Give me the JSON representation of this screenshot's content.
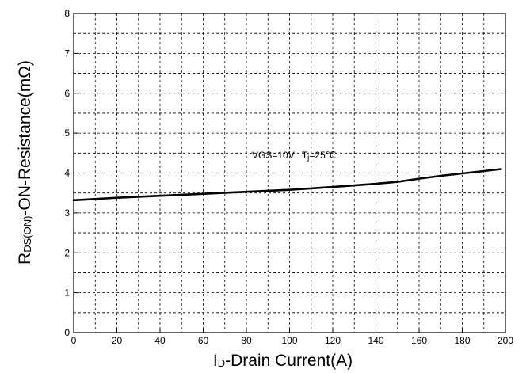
{
  "chart_data": {
    "type": "line",
    "xlabel": {
      "main": "I",
      "sub": "D",
      "rest": "-Drain Current(A)"
    },
    "ylabel": {
      "main": "R",
      "sub": "DS(ON)",
      "rest": "-ON-Resistance(mΩ)"
    },
    "xlim": [
      0,
      200
    ],
    "ylim": [
      0,
      8
    ],
    "xticks": [
      0,
      20,
      40,
      60,
      80,
      100,
      120,
      140,
      160,
      180,
      200
    ],
    "yticks": [
      0,
      1,
      2,
      3,
      4,
      5,
      6,
      7,
      8
    ],
    "x_grid_step": 10,
    "y_grid_step": 0.5,
    "grid": true,
    "annotation": {
      "vgs": "VGS=10V",
      "tj_prefix": "T",
      "tj_sub": "j",
      "tj_value": "=25℃"
    },
    "series": [
      {
        "x": [
          0,
          20,
          40,
          60,
          80,
          100,
          120,
          140,
          150,
          160,
          170,
          180,
          190,
          198
        ],
        "y": [
          3.32,
          3.38,
          3.43,
          3.48,
          3.53,
          3.58,
          3.65,
          3.73,
          3.78,
          3.86,
          3.93,
          3.99,
          4.05,
          4.1
        ]
      }
    ]
  }
}
